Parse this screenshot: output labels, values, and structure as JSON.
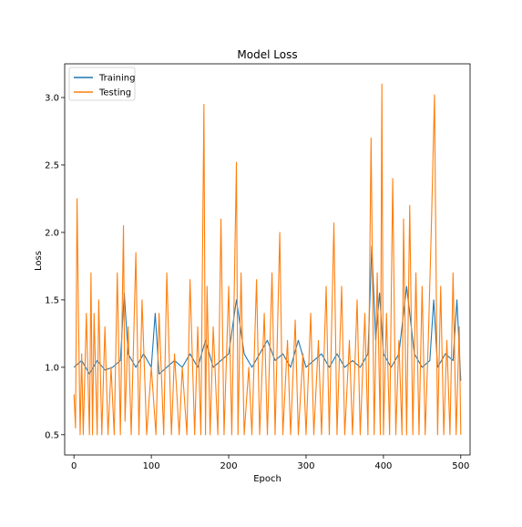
{
  "chart_data": {
    "type": "line",
    "title": "Model Loss",
    "xlabel": "Epoch",
    "ylabel": "Loss",
    "xlim": [
      -12,
      512
    ],
    "ylim": [
      0.35,
      3.25
    ],
    "xticks": [
      0,
      100,
      200,
      300,
      400,
      500
    ],
    "yticks": [
      0.5,
      1.0,
      1.5,
      2.0,
      2.5,
      3.0
    ],
    "ytick_labels": [
      "0.5",
      "1.0",
      "1.5",
      "2.0",
      "2.5",
      "3.0"
    ],
    "grid": false,
    "legend_position": "top-left",
    "epochs": 500,
    "series": [
      {
        "name": "Training",
        "color": "#1f77b4",
        "x": [
          0,
          10,
          20,
          30,
          40,
          50,
          60,
          65,
          70,
          80,
          90,
          100,
          105,
          110,
          120,
          130,
          140,
          150,
          160,
          170,
          180,
          190,
          200,
          210,
          220,
          230,
          240,
          250,
          260,
          270,
          280,
          290,
          300,
          310,
          320,
          330,
          340,
          350,
          360,
          370,
          380,
          385,
          390,
          395,
          400,
          410,
          420,
          430,
          440,
          450,
          460,
          465,
          470,
          480,
          490,
          495,
          500
        ],
        "values": [
          1.0,
          1.05,
          0.95,
          1.05,
          0.98,
          1.0,
          1.05,
          1.55,
          1.1,
          1.0,
          1.1,
          1.0,
          1.4,
          0.95,
          1.0,
          1.05,
          1.0,
          1.1,
          1.0,
          1.2,
          1.0,
          1.05,
          1.1,
          1.5,
          1.1,
          1.0,
          1.1,
          1.2,
          1.05,
          1.1,
          1.0,
          1.2,
          1.0,
          1.05,
          1.1,
          1.0,
          1.1,
          1.0,
          1.05,
          1.0,
          1.1,
          1.9,
          1.2,
          1.55,
          1.1,
          1.0,
          1.1,
          1.6,
          1.1,
          1.0,
          1.05,
          1.5,
          1.0,
          1.1,
          1.05,
          1.5,
          0.9
        ]
      },
      {
        "name": "Testing",
        "color": "#ff7f0e",
        "x": [
          0,
          2,
          4,
          6,
          8,
          10,
          12,
          16,
          20,
          22,
          24,
          26,
          30,
          32,
          36,
          40,
          44,
          48,
          52,
          56,
          60,
          64,
          66,
          70,
          74,
          80,
          84,
          88,
          94,
          100,
          106,
          110,
          116,
          120,
          126,
          130,
          136,
          140,
          146,
          150,
          156,
          160,
          164,
          168,
          170,
          172,
          176,
          180,
          186,
          190,
          194,
          200,
          204,
          210,
          212,
          216,
          220,
          226,
          230,
          236,
          240,
          246,
          250,
          256,
          260,
          266,
          270,
          276,
          280,
          286,
          290,
          296,
          300,
          306,
          310,
          316,
          320,
          326,
          330,
          336,
          340,
          346,
          350,
          356,
          360,
          366,
          370,
          376,
          380,
          384,
          388,
          392,
          396,
          398,
          400,
          404,
          408,
          412,
          416,
          420,
          424,
          426,
          430,
          434,
          438,
          442,
          446,
          450,
          454,
          458,
          462,
          466,
          470,
          474,
          478,
          482,
          486,
          490,
          494,
          498,
          500
        ],
        "values": [
          0.8,
          0.55,
          2.25,
          1.3,
          0.5,
          1.1,
          0.5,
          1.4,
          0.5,
          1.7,
          0.5,
          1.4,
          0.5,
          1.5,
          0.5,
          1.3,
          0.5,
          1.0,
          0.5,
          1.7,
          0.5,
          2.05,
          0.6,
          1.3,
          0.5,
          1.85,
          0.5,
          1.5,
          0.5,
          1.0,
          0.5,
          1.4,
          0.5,
          1.7,
          0.5,
          1.1,
          0.5,
          1.0,
          0.5,
          1.65,
          0.5,
          1.3,
          0.5,
          2.95,
          0.5,
          1.6,
          0.5,
          1.3,
          0.5,
          2.1,
          0.5,
          1.6,
          0.5,
          2.52,
          0.5,
          1.7,
          0.5,
          1.0,
          0.5,
          1.65,
          0.5,
          1.4,
          0.5,
          1.7,
          0.5,
          2.0,
          0.5,
          1.2,
          0.5,
          1.35,
          0.5,
          1.1,
          0.5,
          1.4,
          0.5,
          1.2,
          0.5,
          1.6,
          0.5,
          2.07,
          0.5,
          1.6,
          0.5,
          1.2,
          0.5,
          1.5,
          0.5,
          1.4,
          0.5,
          2.7,
          0.5,
          1.7,
          0.5,
          3.1,
          0.5,
          1.4,
          0.5,
          2.4,
          0.5,
          1.2,
          0.5,
          2.1,
          0.5,
          2.2,
          0.5,
          1.7,
          0.5,
          1.6,
          0.5,
          1.2,
          2.05,
          3.02,
          0.5,
          1.6,
          0.5,
          1.2,
          0.5,
          1.7,
          0.5,
          1.3,
          0.5
        ]
      }
    ]
  }
}
